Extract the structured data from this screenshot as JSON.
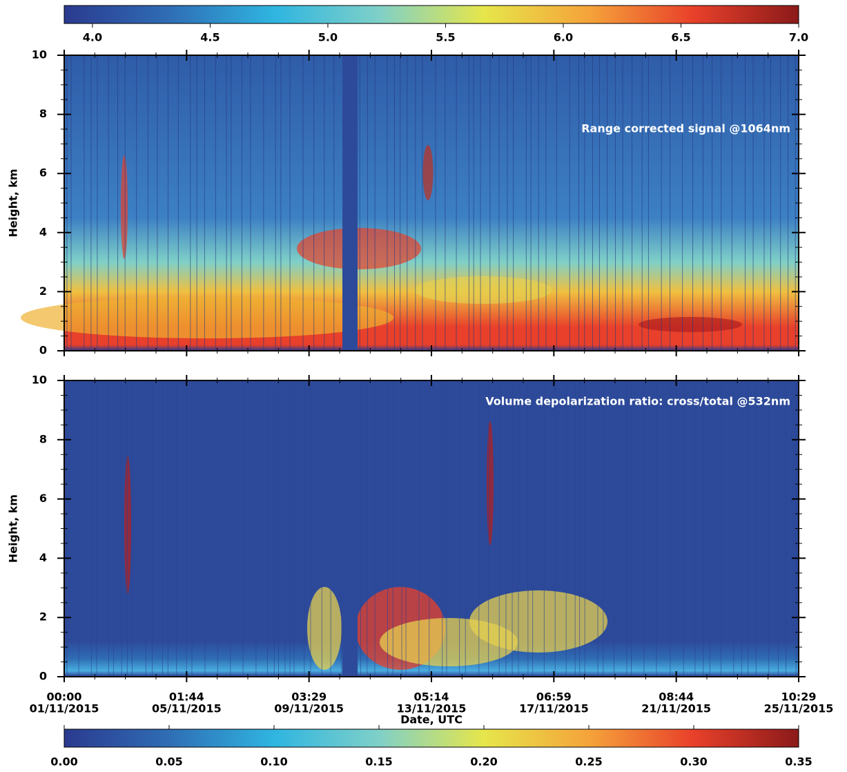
{
  "colorbars": [
    {
      "lim": [
        3.88,
        7.0
      ],
      "ticks": [
        {
          "value": 4.0,
          "label": "4.0"
        },
        4.5,
        {
          "value": 5.0,
          "label": "5.0"
        },
        5.5,
        {
          "value": 6.0,
          "label": "6.0"
        },
        6.5,
        {
          "value": 7.0,
          "label": "7.0"
        }
      ],
      "colors": [
        "#2b3a8f",
        "#2f6db5",
        "#2fb5e0",
        "#7fd0c8",
        "#e6e64a",
        "#f5a33a",
        "#e8402a",
        "#8b1a1a"
      ]
    },
    {
      "lim": [
        0,
        0.35
      ],
      "ticks": [
        {
          "value": 0,
          "label": "0.00"
        },
        {
          "value": 0.05,
          "label": "0.05"
        },
        {
          "value": 0.1,
          "label": "0.10"
        },
        {
          "value": 0.15,
          "label": "0.15"
        },
        {
          "value": 0.2,
          "label": "0.20"
        },
        {
          "value": 0.25,
          "label": "0.25"
        },
        {
          "value": 0.3,
          "label": "0.30"
        },
        {
          "value": 0.35,
          "label": "0.35"
        }
      ],
      "colors": [
        "#2b3a8f",
        "#2f6db5",
        "#2fb5e0",
        "#7fd0c8",
        "#e6e64a",
        "#f5a33a",
        "#e8402a",
        "#8b1a1a"
      ]
    }
  ],
  "panels": [
    {
      "annotation": "Range corrected signal @1064nm",
      "y_label": "Height, km",
      "ylim": [
        0,
        10
      ],
      "yticks": [
        0,
        2,
        4,
        6,
        8,
        10
      ]
    },
    {
      "annotation": "Volume depolarization ratio: cross/total @532nm",
      "y_label": "Height, km",
      "ylim": [
        0,
        10
      ],
      "yticks": [
        0,
        2,
        4,
        6,
        8,
        10
      ]
    }
  ],
  "x_axis": {
    "label": "Date, UTC",
    "ticks": [
      {
        "time": "00:00",
        "date": "01/11/2015"
      },
      {
        "time": "01:44",
        "date": "05/11/2015"
      },
      {
        "time": "03:29",
        "date": "09/11/2015"
      },
      {
        "time": "05:14",
        "date": "13/11/2015"
      },
      {
        "time": "06:59",
        "date": "17/11/2015"
      },
      {
        "time": "08:44",
        "date": "21/11/2015"
      },
      {
        "time": "10:29",
        "date": "25/11/2015"
      }
    ]
  }
}
